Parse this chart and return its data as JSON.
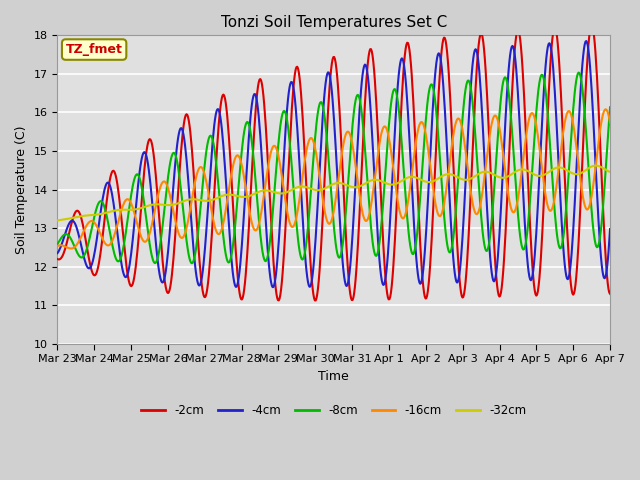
{
  "title": "Tonzi Soil Temperatures Set C",
  "xlabel": "Time",
  "ylabel": "Soil Temperature (C)",
  "ylim": [
    10.0,
    18.0
  ],
  "yticks": [
    10.0,
    11.0,
    12.0,
    13.0,
    14.0,
    15.0,
    16.0,
    17.0,
    18.0
  ],
  "x_labels": [
    "Mar 23",
    "Mar 24",
    "Mar 25",
    "Mar 26",
    "Mar 27",
    "Mar 28",
    "Mar 29",
    "Mar 30",
    "Mar 31",
    "Apr 1",
    "Apr 2",
    "Apr 3",
    "Apr 4",
    "Apr 5",
    "Apr 6",
    "Apr 7"
  ],
  "series_colors": [
    "#dd0000",
    "#2222cc",
    "#00bb00",
    "#ff8800",
    "#cccc00"
  ],
  "series_labels": [
    "-2cm",
    "-4cm",
    "-8cm",
    "-16cm",
    "-32cm"
  ],
  "plot_bg_color": "#e0e0e0",
  "fig_bg_color": "#d0d0d0",
  "legend_box_facecolor": "#ffffcc",
  "legend_box_edgecolor": "#888800",
  "annotation_text": "TZ_fmet",
  "annotation_color": "#cc0000",
  "grid_color": "#ffffff",
  "linewidth": 1.5,
  "n_days": 15,
  "n_per_day": 48
}
